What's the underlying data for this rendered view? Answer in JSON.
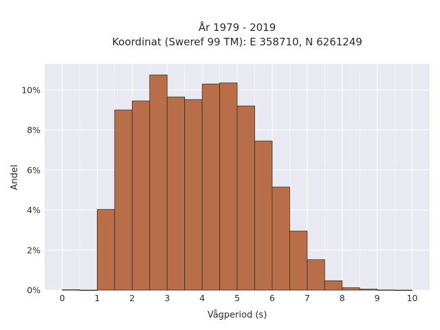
{
  "chart_data": {
    "type": "bar",
    "title": "År 1979 - 2019",
    "subtitle": "Koordinat (Sweref 99 TM): E 358710, N 6261249",
    "xlabel": "Vågperiod (s)",
    "ylabel": "Andel",
    "bin_width": 0.5,
    "bins_start": [
      0,
      0.5,
      1,
      1.5,
      2,
      2.5,
      3,
      3.5,
      4,
      4.5,
      5,
      5.5,
      6,
      6.5,
      7,
      7.5,
      8,
      8.5,
      9,
      9.5
    ],
    "values": [
      0.02,
      0,
      4.03,
      9.0,
      9.45,
      10.75,
      9.65,
      9.52,
      10.3,
      10.35,
      9.2,
      7.45,
      5.15,
      2.95,
      1.52,
      0.47,
      0.12,
      0.05,
      0.01,
      0.0
    ],
    "xlim": [
      -0.5,
      10.5
    ],
    "ylim": [
      0,
      11.3
    ],
    "xticks": [
      0,
      1,
      2,
      3,
      4,
      5,
      6,
      7,
      8,
      9,
      10
    ],
    "yticks": [
      0,
      2,
      4,
      6,
      8,
      10
    ],
    "ytick_labels": [
      "0%",
      "2%",
      "4%",
      "6%",
      "8%",
      "10%"
    ],
    "grid": true,
    "colors": {
      "bar_fill": "#b86f49",
      "bar_edge": "#3b2a20",
      "plot_background": "#e9e9f2",
      "grid": "#ffffff"
    }
  }
}
